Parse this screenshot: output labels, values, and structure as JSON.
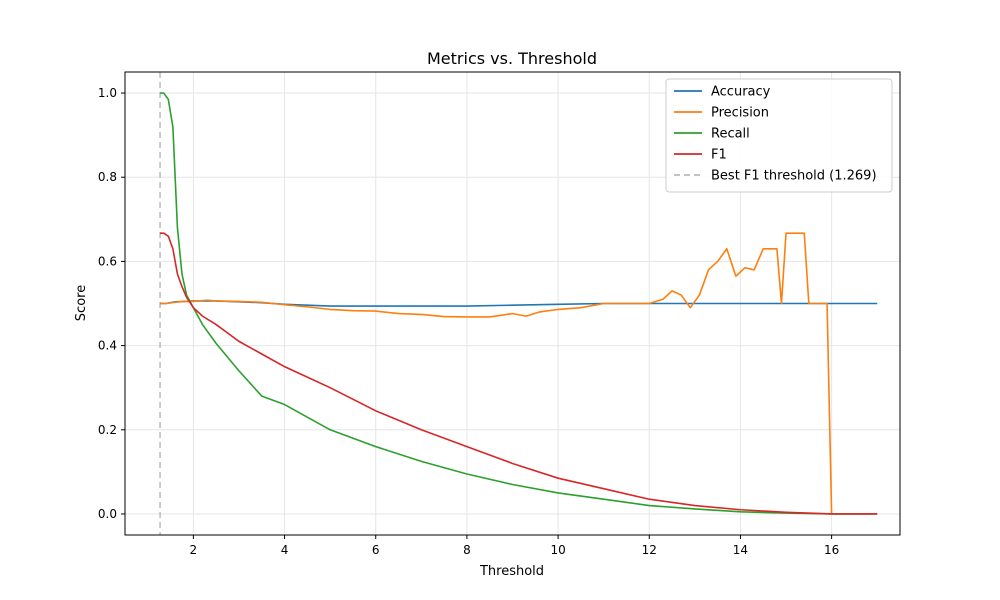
{
  "chart_data": {
    "type": "line",
    "title": "Metrics vs. Threshold",
    "xlabel": "Threshold",
    "ylabel": "Score",
    "xlim": [
      0.5,
      17.5
    ],
    "ylim": [
      -0.05,
      1.05
    ],
    "x_ticks": [
      2,
      4,
      6,
      8,
      10,
      12,
      14,
      16
    ],
    "y_ticks": [
      0.0,
      0.2,
      0.4,
      0.6,
      0.8,
      1.0
    ],
    "x_tick_labels": [
      "2",
      "4",
      "6",
      "8",
      "10",
      "12",
      "14",
      "16"
    ],
    "y_tick_labels": [
      "0.0",
      "0.2",
      "0.4",
      "0.6",
      "0.8",
      "1.0"
    ],
    "grid": true,
    "legend_position": "top-right",
    "series": [
      {
        "name": "Accuracy",
        "color": "#1f77b4",
        "x": [
          1.269,
          1.4,
          1.6,
          1.8,
          2.0,
          2.5,
          3.0,
          3.5,
          4.0,
          5.0,
          6.0,
          6.5,
          7.0,
          8.0,
          9.0,
          10.0,
          11.0,
          12.0,
          13.0,
          14.0,
          15.0,
          16.0,
          17.0
        ],
        "y": [
          0.5,
          0.5,
          0.504,
          0.505,
          0.506,
          0.506,
          0.504,
          0.502,
          0.498,
          0.494,
          0.494,
          0.494,
          0.494,
          0.494,
          0.496,
          0.498,
          0.5,
          0.5,
          0.5,
          0.5,
          0.5,
          0.5,
          0.5
        ]
      },
      {
        "name": "Precision",
        "color": "#ff7f0e",
        "x": [
          1.269,
          1.4,
          1.6,
          1.8,
          2.0,
          2.3,
          2.5,
          3.0,
          3.5,
          4.0,
          4.5,
          5.0,
          5.5,
          6.0,
          6.5,
          7.0,
          7.5,
          8.0,
          8.5,
          9.0,
          9.3,
          9.6,
          10.0,
          10.5,
          11.0,
          11.5,
          12.0,
          12.3,
          12.5,
          12.7,
          12.9,
          13.1,
          13.3,
          13.5,
          13.7,
          13.9,
          14.1,
          14.3,
          14.5,
          14.8,
          14.9,
          15.0,
          15.4,
          15.5,
          15.9,
          16.0
        ],
        "y": [
          0.5,
          0.5,
          0.503,
          0.505,
          0.505,
          0.508,
          0.506,
          0.505,
          0.503,
          0.497,
          0.492,
          0.486,
          0.483,
          0.482,
          0.476,
          0.474,
          0.469,
          0.468,
          0.468,
          0.476,
          0.47,
          0.48,
          0.486,
          0.49,
          0.5,
          0.5,
          0.5,
          0.51,
          0.53,
          0.52,
          0.49,
          0.52,
          0.58,
          0.6,
          0.63,
          0.565,
          0.585,
          0.58,
          0.63,
          0.63,
          0.5,
          0.667,
          0.667,
          0.5,
          0.5,
          0.0
        ]
      },
      {
        "name": "Recall",
        "color": "#2ca02c",
        "x": [
          1.269,
          1.35,
          1.45,
          1.55,
          1.65,
          1.75,
          1.85,
          2.0,
          2.2,
          2.5,
          3.0,
          3.5,
          4.0,
          5.0,
          6.0,
          7.0,
          8.0,
          9.0,
          10.0,
          11.0,
          12.0,
          13.0,
          14.0,
          15.0,
          16.0,
          17.0
        ],
        "y": [
          1.0,
          1.0,
          0.985,
          0.92,
          0.68,
          0.57,
          0.52,
          0.49,
          0.45,
          0.405,
          0.34,
          0.28,
          0.26,
          0.2,
          0.16,
          0.125,
          0.095,
          0.07,
          0.05,
          0.035,
          0.02,
          0.012,
          0.005,
          0.002,
          0.0,
          0.0
        ]
      },
      {
        "name": "F1",
        "color": "#d62728",
        "x": [
          1.269,
          1.35,
          1.45,
          1.55,
          1.65,
          1.75,
          1.85,
          2.0,
          2.2,
          2.5,
          3.0,
          3.5,
          4.0,
          5.0,
          6.0,
          7.0,
          8.0,
          9.0,
          10.0,
          11.0,
          12.0,
          13.0,
          14.0,
          15.0,
          16.0,
          17.0
        ],
        "y": [
          0.667,
          0.667,
          0.66,
          0.63,
          0.57,
          0.54,
          0.515,
          0.49,
          0.47,
          0.45,
          0.41,
          0.38,
          0.35,
          0.3,
          0.245,
          0.2,
          0.16,
          0.12,
          0.085,
          0.06,
          0.035,
          0.02,
          0.01,
          0.004,
          0.0,
          0.0
        ]
      }
    ],
    "vline": {
      "name": "Best F1 threshold (1.269)",
      "x": 1.269,
      "color": "#bbbbbb",
      "style": "dashed"
    }
  }
}
